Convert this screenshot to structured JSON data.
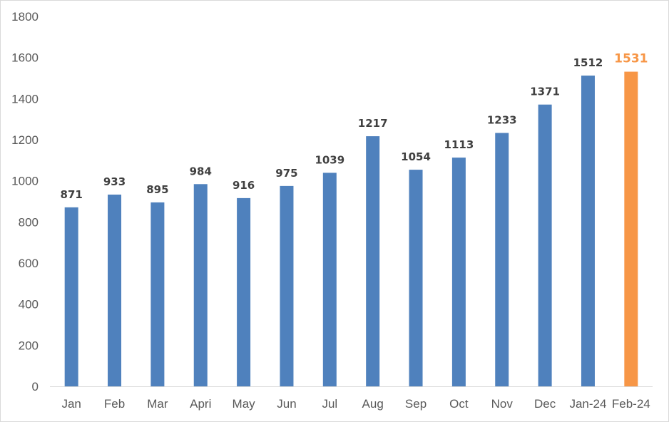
{
  "chart_data": {
    "type": "bar",
    "title": "",
    "xlabel": "",
    "ylabel": "",
    "categories": [
      "Jan",
      "Feb",
      "Mar",
      "Apri",
      "May",
      "Jun",
      "Jul",
      "Aug",
      "Sep",
      "Oct",
      "Nov",
      "Dec",
      "Jan-24",
      "Feb-24"
    ],
    "values": [
      871,
      933,
      895,
      984,
      916,
      975,
      1039,
      1217,
      1054,
      1113,
      1233,
      1371,
      1512,
      1531
    ],
    "ylim": [
      0,
      1800
    ],
    "yticks": [
      0,
      200,
      400,
      600,
      800,
      1000,
      1200,
      1400,
      1600,
      1800
    ],
    "grid": false,
    "legend": "none",
    "data_labels": true,
    "colors": {
      "bar": "#4f81bd",
      "highlight_bar": "#f79646",
      "highlight_label": "#f79646",
      "label": "#404040",
      "axis_text": "#595959",
      "axis_line": "#d9d9d9"
    },
    "highlight_index": 13
  }
}
